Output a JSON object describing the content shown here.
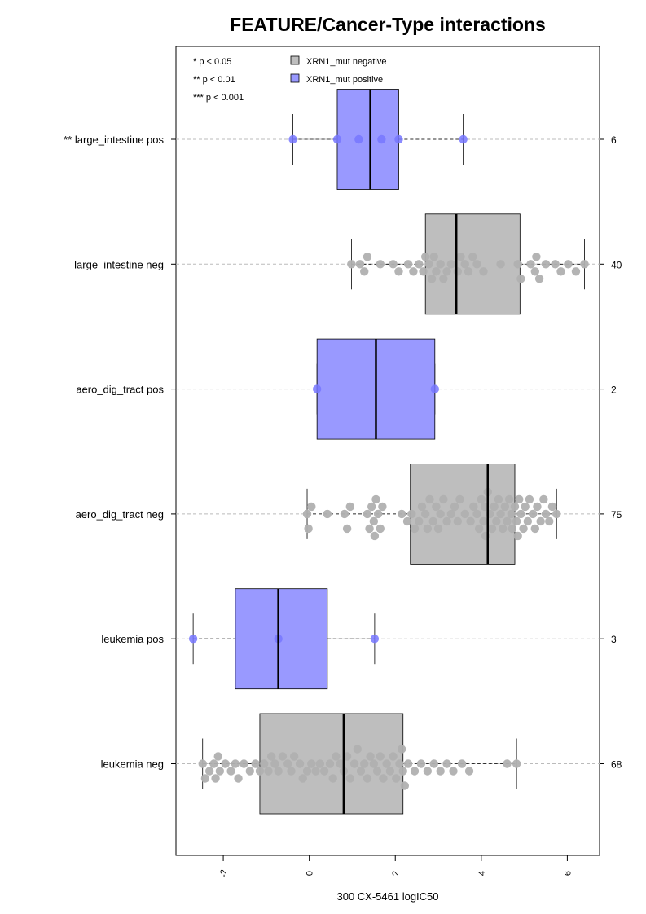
{
  "chart_data": {
    "type": "boxplot",
    "orientation": "horizontal",
    "title": "FEATURE/Cancer-Type interactions",
    "xlabel": "300 CX-5461 logIC50",
    "xlim": [
      -3.1,
      6.75
    ],
    "xticks": [
      -2,
      0,
      2,
      4,
      6
    ],
    "xtick_labels": [
      "-2",
      "0",
      "2",
      "4",
      "6"
    ],
    "significance_legend": [
      "* p < 0.05",
      "** p < 0.01",
      "*** p < 0.001"
    ],
    "legend": [
      {
        "label": "XRN1_mut negative",
        "color": "#bebebe"
      },
      {
        "label": "XRN1_mut positive",
        "color": "#9999ff"
      }
    ],
    "colors": {
      "negative": "#bebebe",
      "positive": "#9999ff",
      "neg_points": "#b0b0b0",
      "pos_points": "#7777ff"
    },
    "groups": [
      {
        "label": "** large_intestine pos",
        "status": "positive",
        "n": "6",
        "whisker_low": -0.38,
        "q1": 0.65,
        "median": 1.42,
        "q3": 2.08,
        "whisker_high": 3.58,
        "points": [
          -0.38,
          0.65,
          1.15,
          1.68,
          2.08,
          3.58
        ]
      },
      {
        "label": "large_intestine neg",
        "status": "negative",
        "n": "40",
        "whisker_low": 0.98,
        "q1": 2.7,
        "median": 3.42,
        "q3": 4.9,
        "whisker_high": 6.4,
        "points": [
          0.98,
          1.18,
          1.28,
          1.35,
          1.65,
          1.95,
          2.08,
          2.3,
          2.42,
          2.55,
          2.65,
          2.7,
          2.78,
          2.85,
          2.9,
          2.95,
          3.05,
          3.12,
          3.2,
          3.3,
          3.45,
          3.52,
          3.62,
          3.7,
          3.8,
          3.9,
          4.05,
          4.45,
          4.85,
          4.92,
          5.15,
          5.25,
          5.28,
          5.35,
          5.5,
          5.72,
          5.85,
          6.02,
          6.2,
          6.4
        ]
      },
      {
        "label": "aero_dig_tract pos",
        "status": "positive",
        "n": "2",
        "whisker_low": 0.18,
        "q1": 0.18,
        "median": 1.55,
        "q3": 2.92,
        "whisker_high": 2.92,
        "points": [
          0.18,
          2.92
        ]
      },
      {
        "label": "aero_dig_tract neg",
        "status": "negative",
        "n": "75",
        "whisker_low": -0.05,
        "q1": 2.35,
        "median": 4.15,
        "q3": 4.78,
        "whisker_high": 5.75,
        "points": [
          -0.05,
          -0.02,
          0.05,
          0.42,
          0.82,
          0.88,
          0.95,
          1.35,
          1.4,
          1.45,
          1.5,
          1.52,
          1.55,
          1.6,
          1.65,
          1.7,
          2.15,
          2.28,
          2.38,
          2.45,
          2.55,
          2.62,
          2.7,
          2.75,
          2.8,
          2.88,
          2.95,
          3.0,
          3.05,
          3.12,
          3.2,
          3.3,
          3.38,
          3.45,
          3.5,
          3.62,
          3.75,
          3.82,
          3.9,
          3.95,
          4.0,
          4.05,
          4.08,
          4.1,
          4.15,
          4.2,
          4.25,
          4.3,
          4.35,
          4.4,
          4.45,
          4.5,
          4.55,
          4.6,
          4.65,
          4.7,
          4.72,
          4.78,
          4.82,
          4.85,
          4.88,
          4.92,
          4.98,
          5.02,
          5.08,
          5.12,
          5.2,
          5.25,
          5.3,
          5.38,
          5.45,
          5.5,
          5.58,
          5.65,
          5.75
        ]
      },
      {
        "label": "leukemia pos",
        "status": "positive",
        "n": "3",
        "whisker_low": -2.7,
        "q1": -1.72,
        "median": -0.72,
        "q3": 0.42,
        "whisker_high": 1.52,
        "points": [
          -2.7,
          -0.72,
          1.52
        ]
      },
      {
        "label": "leukemia neg",
        "status": "negative",
        "n": "68",
        "whisker_low": -2.48,
        "q1": -1.15,
        "median": 0.8,
        "q3": 2.18,
        "whisker_high": 4.82,
        "points": [
          -2.48,
          -2.42,
          -2.32,
          -2.22,
          -2.18,
          -2.12,
          -2.08,
          -1.95,
          -1.82,
          -1.72,
          -1.65,
          -1.52,
          -1.38,
          -1.25,
          -1.15,
          -1.05,
          -0.95,
          -0.88,
          -0.8,
          -0.72,
          -0.62,
          -0.5,
          -0.42,
          -0.35,
          -0.22,
          -0.15,
          -0.05,
          0.05,
          0.15,
          0.25,
          0.35,
          0.48,
          0.55,
          0.62,
          0.72,
          0.8,
          0.88,
          0.95,
          1.05,
          1.12,
          1.2,
          1.28,
          1.35,
          1.42,
          1.5,
          1.58,
          1.65,
          1.72,
          1.8,
          1.88,
          1.95,
          2.02,
          2.1,
          2.15,
          2.18,
          2.22,
          2.3,
          2.45,
          2.6,
          2.75,
          2.9,
          3.05,
          3.2,
          3.35,
          3.55,
          3.72,
          4.6,
          4.82
        ]
      }
    ]
  }
}
